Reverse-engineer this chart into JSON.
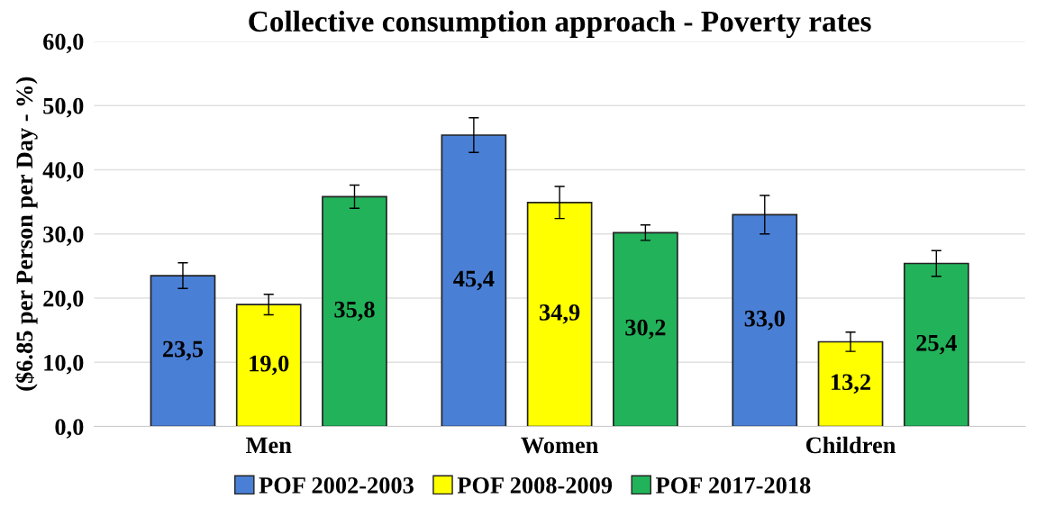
{
  "chart_data": {
    "type": "bar",
    "title": "Collective consumption approach - Poverty rates",
    "ylabel": "($6.85 per Person per Day - %)",
    "categories": [
      "Men",
      "Women",
      "Children"
    ],
    "series": [
      {
        "name": "POF 2002-2003",
        "color": "#4a7fd6",
        "values": [
          23.5,
          45.4,
          33.0
        ],
        "errors": [
          2.0,
          2.7,
          3.0
        ],
        "value_labels": [
          "23,5",
          "45,4",
          "33,0"
        ]
      },
      {
        "name": "POF 2008-2009",
        "color": "#ffff00",
        "values": [
          19.0,
          34.9,
          13.2
        ],
        "errors": [
          1.6,
          2.5,
          1.5
        ],
        "value_labels": [
          "19,0",
          "34,9",
          "13,2"
        ]
      },
      {
        "name": "POF 2017-2018",
        "color": "#22b35a",
        "values": [
          35.8,
          30.2,
          25.4
        ],
        "errors": [
          1.8,
          1.2,
          2.0
        ],
        "value_labels": [
          "35,8",
          "30,2",
          "25,4"
        ]
      }
    ],
    "ylim": [
      0,
      60
    ],
    "yticks": [
      {
        "value": 0,
        "label": "0,0"
      },
      {
        "value": 10,
        "label": "10,0"
      },
      {
        "value": 20,
        "label": "20,0"
      },
      {
        "value": 30,
        "label": "30,0"
      },
      {
        "value": 40,
        "label": "40,0"
      },
      {
        "value": 50,
        "label": "50,0"
      },
      {
        "value": 60,
        "label": "60,0"
      }
    ],
    "grid": "y",
    "legend": "bottom"
  }
}
